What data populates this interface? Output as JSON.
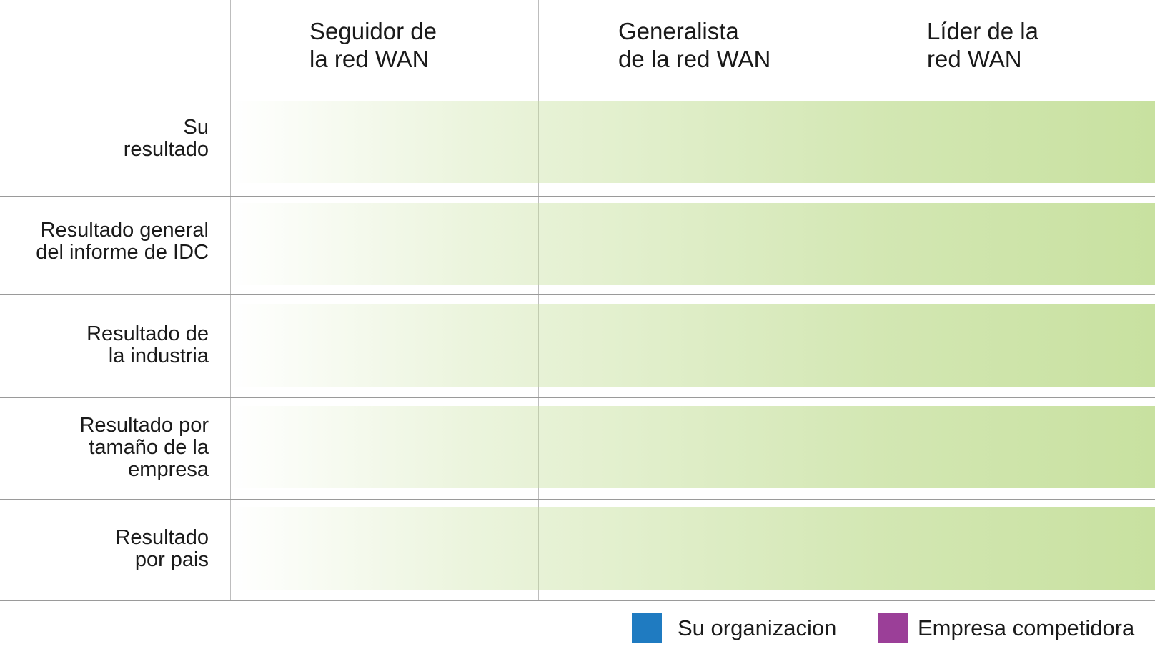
{
  "chart_data": {
    "type": "table",
    "columns": [
      "Seguidor de\nla red WAN",
      "Generalista\nde la red WAN",
      "Líder de la\nred WAN"
    ],
    "rows": [
      "Su\nresultado",
      "Resultado general\ndel informe de IDC",
      "Resultado de\nla industria",
      "Resultado por\ntamaño de la\nempresa",
      "Resultado\npor pais"
    ],
    "gradient_color": "#c8e1a0",
    "legend": [
      {
        "label": "Su organizacion",
        "color": "#1f7bc1"
      },
      {
        "label": "Empresa competidora",
        "color": "#9b3f98"
      }
    ]
  }
}
